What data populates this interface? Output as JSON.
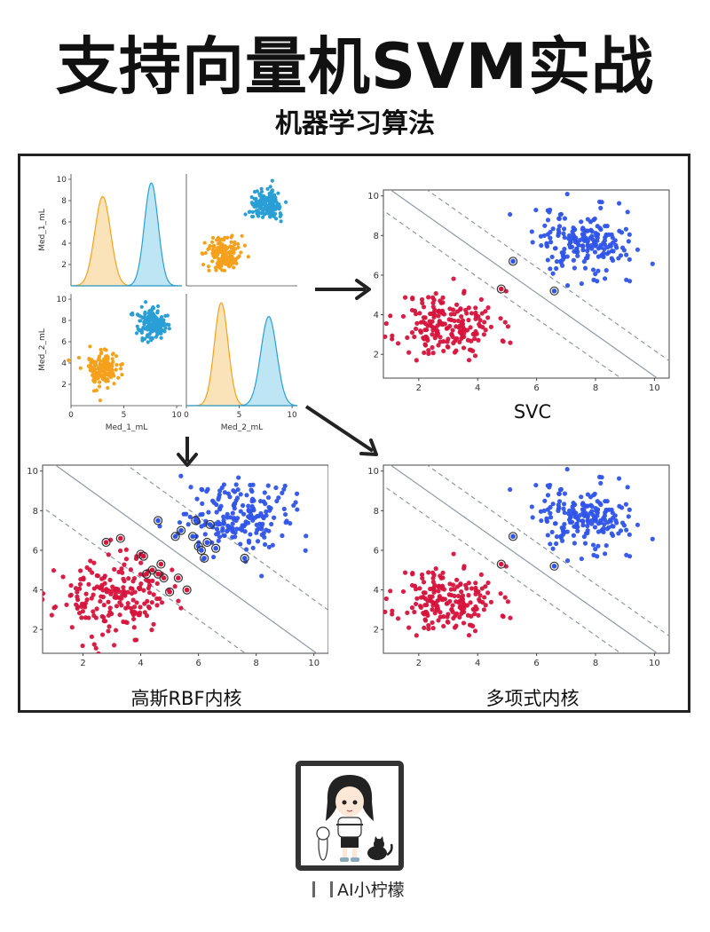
{
  "header": {
    "title": "支持向量机SVM实战",
    "subtitle": "机器学习算法"
  },
  "brand": {
    "name": "AI小柠檬"
  },
  "colors": {
    "red": "#d6143c",
    "blue": "#2f54e8",
    "orange": "#f5a11d",
    "cyan": "#2a9fd6",
    "kde_orange_fill": "#f9d9a2",
    "kde_blue_fill": "#a8dcef",
    "boundary": "#8c9aa6",
    "margin": "#8c9aa6"
  },
  "chart_data": [
    {
      "type": "pairplot",
      "variables": [
        "Med_1_mL",
        "Med_2_mL"
      ],
      "xlabels": [
        "Med_1_mL",
        "Med_2_mL"
      ],
      "ylabels": [
        "Med_1_mL",
        "Med_2_mL"
      ],
      "ticks": [
        2,
        4,
        6,
        8,
        10
      ],
      "xticks": [
        0,
        5,
        10
      ],
      "range": [
        0,
        10.5
      ],
      "classes": [
        {
          "color": "orange",
          "center": [
            3,
            3.5
          ],
          "spread": 0.9
        },
        {
          "color": "cyan",
          "center": [
            7.6,
            7.6
          ],
          "spread": 0.8
        }
      ],
      "kde": {
        "Med_1_mL": [
          {
            "mean": 3.0,
            "sd": 0.75
          },
          {
            "mean": 7.6,
            "sd": 0.65
          }
        ],
        "Med_2_mL": [
          {
            "mean": 3.3,
            "sd": 0.65
          },
          {
            "mean": 7.8,
            "sd": 0.75
          }
        ]
      }
    },
    {
      "type": "scatter",
      "title": "SVC",
      "xlim": [
        0.8,
        10.5
      ],
      "ylim": [
        0.8,
        10.3
      ],
      "xticks": [
        2,
        4,
        6,
        8,
        10
      ],
      "yticks": [
        2,
        4,
        6,
        8,
        10
      ],
      "boundary": {
        "slope": -1.05,
        "intercept": 11.4,
        "margin": 1.3
      },
      "support_vectors": [
        [
          5.2,
          6.7
        ],
        [
          6.6,
          5.2
        ],
        [
          4.8,
          5.3
        ]
      ],
      "classes": [
        {
          "color": "red",
          "center": [
            3.0,
            3.5
          ],
          "spread": 0.85
        },
        {
          "color": "blue",
          "center": [
            7.5,
            7.7
          ],
          "spread": 0.85
        }
      ]
    },
    {
      "type": "scatter",
      "title": "高斯RBF内核",
      "xlim": [
        0.6,
        10.5
      ],
      "ylim": [
        0.8,
        10.3
      ],
      "xticks": [
        2,
        4,
        6,
        8,
        10
      ],
      "yticks": [
        2,
        4,
        6,
        8,
        10
      ],
      "boundary": {
        "slope": -1.05,
        "intercept": 11.4,
        "margin": 2.6
      },
      "support_vectors": [
        [
          2.8,
          6.4
        ],
        [
          3.3,
          6.6
        ],
        [
          4.0,
          5.8
        ],
        [
          4.1,
          5.7
        ],
        [
          4.2,
          4.8
        ],
        [
          4.4,
          5.0
        ],
        [
          4.6,
          4.8
        ],
        [
          4.7,
          5.3
        ],
        [
          4.8,
          4.6
        ],
        [
          5.0,
          3.9
        ],
        [
          5.3,
          4.6
        ],
        [
          5.6,
          4.0
        ],
        [
          4.6,
          7.5
        ],
        [
          5.4,
          7.0
        ],
        [
          5.8,
          6.7
        ],
        [
          6.0,
          6.2
        ],
        [
          6.1,
          6.0
        ],
        [
          6.3,
          6.4
        ],
        [
          6.6,
          6.1
        ],
        [
          5.2,
          6.7
        ],
        [
          6.4,
          7.3
        ],
        [
          7.6,
          5.6
        ],
        [
          6.2,
          5.6
        ],
        [
          5.9,
          7.5
        ]
      ],
      "classes": [
        {
          "color": "red",
          "center": [
            3.0,
            3.6
          ],
          "spread": 0.95
        },
        {
          "color": "blue",
          "center": [
            7.3,
            7.6
          ],
          "spread": 0.95
        }
      ]
    },
    {
      "type": "scatter",
      "title": "多项式内核",
      "xlim": [
        0.8,
        10.5
      ],
      "ylim": [
        0.8,
        10.3
      ],
      "xticks": [
        2,
        4,
        6,
        8,
        10
      ],
      "yticks": [
        2,
        4,
        6,
        8,
        10
      ],
      "boundary": {
        "slope": -1.05,
        "intercept": 11.4,
        "margin": 1.3
      },
      "support_vectors": [
        [
          5.2,
          6.7
        ],
        [
          6.6,
          5.2
        ],
        [
          4.8,
          5.3
        ]
      ],
      "classes": [
        {
          "color": "red",
          "center": [
            3.0,
            3.5
          ],
          "spread": 0.85
        },
        {
          "color": "blue",
          "center": [
            7.5,
            7.7
          ],
          "spread": 0.85
        }
      ]
    }
  ]
}
